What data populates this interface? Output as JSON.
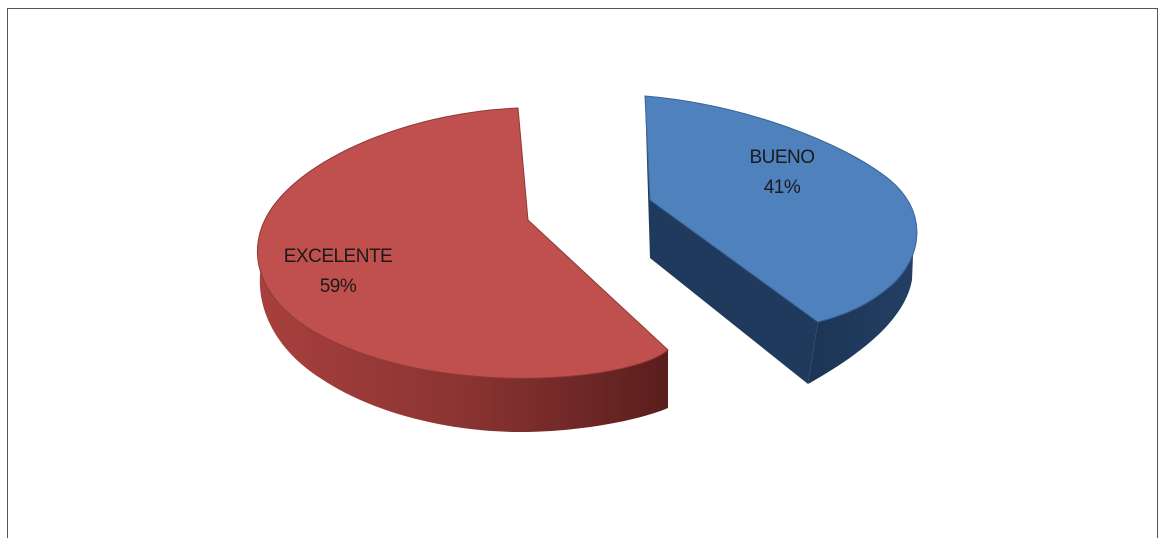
{
  "chart_data": {
    "type": "pie",
    "style": "3d-exploded",
    "slices": [
      {
        "label": "EXCELENTE",
        "value": 59,
        "value_label": "59%",
        "color": "#C0504D",
        "side_color": "#7A2E2C"
      },
      {
        "label": "BUENO",
        "value": 41,
        "value_label": "41%",
        "color": "#4F81BD",
        "side_color": "#1F3A5C"
      }
    ],
    "legend": "none"
  }
}
